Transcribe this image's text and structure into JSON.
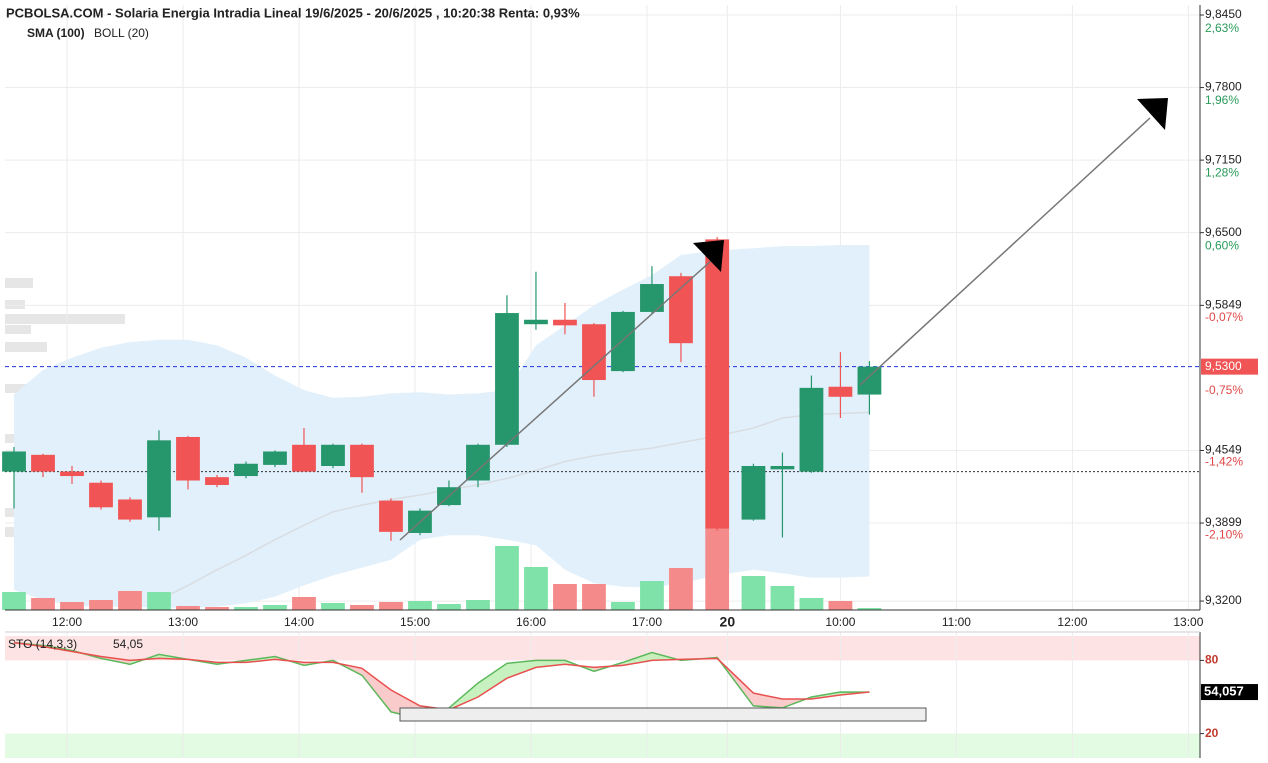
{
  "chart_data": [
    {
      "type": "candlestick",
      "title": "PCBOLSA.COM - Solaria Energia Intradia Lineal 19/6/2025 - 20/6/2025 , 10:20:38 Renta: 0,93%",
      "x": [
        0,
        1,
        2,
        3,
        4,
        5,
        6,
        7,
        8,
        9,
        10,
        11,
        12,
        13,
        14,
        15,
        16,
        17,
        18,
        19,
        20,
        21,
        22,
        23,
        24.25,
        25.5,
        26.5,
        27.5,
        28.5,
        29.5
      ],
      "open": [
        9.436,
        9.451,
        9.436,
        9.426,
        9.411,
        9.395,
        9.467,
        9.431,
        9.432,
        9.442,
        9.46,
        9.441,
        9.46,
        9.41,
        9.381,
        9.406,
        9.428,
        9.46,
        9.568,
        9.572,
        9.568,
        9.526,
        9.579,
        9.611,
        9.644,
        9.393,
        9.438,
        9.436,
        9.512,
        9.505
      ],
      "high": [
        9.458,
        9.452,
        9.441,
        9.428,
        9.413,
        9.473,
        9.468,
        9.433,
        9.445,
        9.455,
        9.475,
        9.461,
        9.461,
        9.412,
        9.403,
        9.428,
        9.461,
        9.594,
        9.615,
        9.587,
        9.569,
        9.58,
        9.62,
        9.614,
        9.646,
        9.443,
        9.453,
        9.522,
        9.543,
        9.535
      ],
      "low": [
        9.403,
        9.431,
        9.425,
        9.402,
        9.391,
        9.383,
        9.42,
        9.422,
        9.43,
        9.44,
        9.436,
        9.439,
        9.417,
        9.374,
        9.379,
        9.405,
        9.422,
        9.458,
        9.563,
        9.559,
        9.503,
        9.525,
        9.577,
        9.534,
        9.383,
        9.392,
        9.377,
        9.435,
        9.484,
        9.487
      ],
      "close": [
        9.454,
        9.436,
        9.432,
        9.404,
        9.393,
        9.464,
        9.428,
        9.424,
        9.443,
        9.454,
        9.436,
        9.46,
        9.431,
        9.382,
        9.401,
        9.422,
        9.46,
        9.578,
        9.572,
        9.567,
        9.518,
        9.579,
        9.604,
        9.551,
        9.385,
        9.441,
        9.441,
        9.511,
        9.503,
        9.53
      ],
      "volume": [
        18,
        12,
        8,
        10,
        19,
        18,
        4,
        3,
        3,
        5,
        13,
        7,
        5,
        8,
        9,
        6,
        10,
        64,
        43,
        26,
        26,
        8,
        29,
        42,
        82,
        34,
        24,
        12,
        9,
        2
      ],
      "up_color": "#26966c",
      "down_color": "#f05454",
      "volume_up_color": "#7fe2a9",
      "volume_down_color": "#f58a8a",
      "series": [
        {
          "name": "SMA (100)",
          "color": "#9fd4f3",
          "values": [
            null,
            null,
            null,
            null,
            null,
            9.321,
            9.334,
            9.348,
            9.361,
            9.375,
            9.388,
            9.4,
            9.406,
            9.411,
            9.415,
            9.42,
            9.424,
            9.43,
            9.437,
            9.445,
            9.45,
            9.454,
            9.457,
            9.462,
            9.468,
            9.475,
            9.484,
            9.487,
            9.488,
            9.489
          ]
        },
        {
          "name": "BOLL (20)",
          "color": "#cfcfcf",
          "fill": "#e1f0fb",
          "upper": [
            9.505,
            9.527,
            9.538,
            9.547,
            9.552,
            9.554,
            9.554,
            9.549,
            9.538,
            9.522,
            9.509,
            9.502,
            9.503,
            9.506,
            9.507,
            9.505,
            9.506,
            9.509,
            9.549,
            9.567,
            9.585,
            9.599,
            9.612,
            9.63,
            9.634,
            9.636,
            9.638,
            9.638,
            9.639,
            9.639
          ],
          "lower": [
            9.33,
            9.321,
            9.316,
            9.315,
            9.315,
            9.314,
            9.314,
            9.315,
            9.318,
            9.324,
            9.334,
            9.343,
            9.35,
            9.357,
            9.375,
            9.379,
            9.379,
            9.375,
            9.37,
            9.348,
            9.336,
            9.333,
            9.332,
            9.336,
            9.343,
            9.348,
            9.345,
            9.341,
            9.341,
            9.342
          ]
        }
      ],
      "xlim": [
        -0.483,
        40.9
      ],
      "xticks": [
        {
          "value": 1.83,
          "label": "12:00"
        },
        {
          "value": 5.83,
          "label": "13:00"
        },
        {
          "value": 9.83,
          "label": "14:00"
        },
        {
          "value": 13.83,
          "label": "15:00"
        },
        {
          "value": 17.83,
          "label": "16:00"
        },
        {
          "value": 21.83,
          "label": "17:00"
        },
        {
          "value": 24.6,
          "label": "20",
          "bold": true
        },
        {
          "value": 28.5,
          "label": "10:00"
        },
        {
          "value": 32.5,
          "label": "11:00"
        },
        {
          "value": 36.5,
          "label": "12:00"
        },
        {
          "value": 40.5,
          "label": "13:00"
        }
      ],
      "ylim": [
        9.312,
        9.845
      ],
      "yticks": [
        {
          "value": 9.845,
          "label": "9,8450"
        },
        {
          "value": 9.78,
          "label": "9,7800"
        },
        {
          "value": 9.715,
          "label": "9,7150"
        },
        {
          "value": 9.65,
          "label": "9,6500"
        },
        {
          "value": 9.5849,
          "label": "9,5849"
        },
        {
          "value": 9.4549,
          "label": "9,4549"
        },
        {
          "value": 9.3899,
          "label": "9,3899"
        },
        {
          "value": 9.32,
          "label": "9,3200"
        }
      ],
      "y2lim": [
        -2.92,
        2.64
      ],
      "y2ticks": [
        {
          "value": 2.63,
          "label": "2,63%"
        },
        {
          "value": 1.96,
          "label": "1,96%"
        },
        {
          "value": 1.28,
          "label": "1,28%"
        },
        {
          "value": 0.6,
          "label": "0,60%"
        },
        {
          "value": -0.07,
          "label": "-0,07%"
        },
        {
          "value": -0.75,
          "label": "-0,75%"
        },
        {
          "value": -1.42,
          "label": "-1,42%"
        },
        {
          "value": -2.1,
          "label": "-2,10%"
        }
      ],
      "current_price": {
        "value": 9.53,
        "label": "9,5300"
      },
      "reference_line": 9.436,
      "grid": true
    },
    {
      "type": "line",
      "title": "STO (14,3,3)",
      "readout": "54,05",
      "x": [
        0,
        1,
        2,
        3,
        4,
        5,
        6,
        7,
        8,
        9,
        10,
        11,
        12,
        13,
        14,
        15,
        16,
        17,
        18,
        19,
        20,
        21,
        22,
        23,
        24.25,
        25.5,
        26.5,
        27.5,
        28.5,
        29.5
      ],
      "series": [
        {
          "color": "#5cb85c",
          "values": [
            94.6,
            92.2,
            88.1,
            81.6,
            76.8,
            84.9,
            80.8,
            76.8,
            80,
            83.2,
            75.9,
            80,
            67.8,
            37.8,
            32.2,
            41.1,
            61.4,
            77.6,
            80,
            80,
            71.1,
            78.4,
            86.5,
            80,
            82.4,
            42.7,
            41.1,
            50,
            54.1,
            54.057
          ]
        },
        {
          "color": "#e8504f",
          "values": [
            94.6,
            91.4,
            87.3,
            83.2,
            80,
            81.6,
            80.8,
            78.4,
            78.4,
            80.8,
            78.4,
            78.4,
            73.5,
            55.7,
            42.7,
            39.5,
            50,
            65.4,
            74.3,
            76.8,
            74.3,
            75.9,
            80,
            80.8,
            81.6,
            53.2,
            48.4,
            48.4,
            51.6,
            54.1
          ]
        }
      ],
      "ylim": [
        0,
        100
      ],
      "yticks": [
        80,
        20
      ],
      "current_value": {
        "value": 54.057,
        "label": "54,057"
      },
      "overbought_color": "#fde3e3",
      "oversold_color": "#e2fbe2",
      "grid": true
    }
  ]
}
